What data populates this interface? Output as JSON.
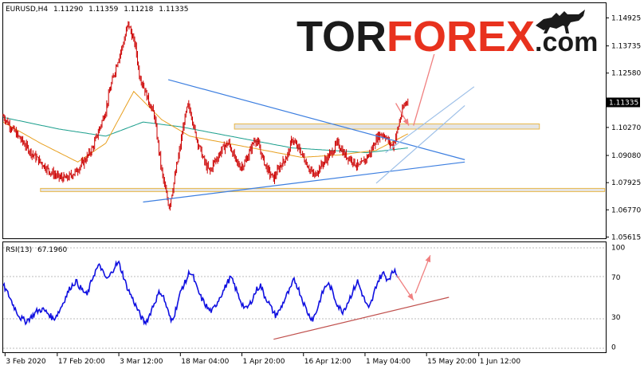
{
  "chart_data": [
    {
      "type": "line",
      "header": {
        "symbol": "EURUSD,H4",
        "open": "1.11290",
        "high": "1.11359",
        "low": "1.11218",
        "close": "1.11335"
      },
      "y_ticks": [
        {
          "value": 1.14925,
          "label": "1.14925"
        },
        {
          "value": 1.13735,
          "label": "1.13735"
        },
        {
          "value": 1.1258,
          "label": "1.12580"
        },
        {
          "value": 1.1027,
          "label": "1.10270"
        },
        {
          "value": 1.0908,
          "label": "1.09080"
        },
        {
          "value": 1.07925,
          "label": "1.07925"
        },
        {
          "value": 1.0677,
          "label": "1.06770"
        },
        {
          "value": 1.05615,
          "label": "1.05615"
        }
      ],
      "current_price": {
        "value": 1.11335,
        "label": "1.11335"
      },
      "ylim": [
        1.0556,
        1.1555
      ],
      "colors": {
        "price": "#cc0000",
        "ma_fast": "#e8a020",
        "ma_slow": "#1a9e8c",
        "trendline": "#3d7fe0",
        "zone_fill": "#dcdcdc",
        "zone_border": "#e8b84a",
        "arrow": "#f08080",
        "channel": "#9ec0e8"
      },
      "price_anchors": [
        [
          0,
          1.1075
        ],
        [
          10,
          1.102
        ],
        [
          20,
          1.097
        ],
        [
          30,
          1.092
        ],
        [
          40,
          1.088
        ],
        [
          50,
          1.084
        ],
        [
          60,
          1.0815
        ],
        [
          68,
          1.081
        ],
        [
          78,
          1.084
        ],
        [
          88,
          1.089
        ],
        [
          96,
          1.094
        ],
        [
          104,
          1.103
        ],
        [
          110,
          1.11
        ],
        [
          114,
          1.118
        ],
        [
          118,
          1.124
        ],
        [
          122,
          1.13
        ],
        [
          126,
          1.135
        ],
        [
          130,
          1.14
        ],
        [
          134,
          1.147
        ],
        [
          138,
          1.142
        ],
        [
          142,
          1.137
        ],
        [
          146,
          1.125
        ],
        [
          150,
          1.121
        ],
        [
          154,
          1.116
        ],
        [
          158,
          1.112
        ],
        [
          162,
          1.108
        ],
        [
          166,
          1.096
        ],
        [
          170,
          1.084
        ],
        [
          174,
          1.076
        ],
        [
          178,
          1.069
        ],
        [
          182,
          1.077
        ],
        [
          186,
          1.086
        ],
        [
          190,
          1.095
        ],
        [
          194,
          1.105
        ],
        [
          198,
          1.112
        ],
        [
          202,
          1.108
        ],
        [
          206,
          1.1
        ],
        [
          210,
          1.095
        ],
        [
          214,
          1.09
        ],
        [
          218,
          1.086
        ],
        [
          222,
          1.084
        ],
        [
          226,
          1.088
        ],
        [
          230,
          1.09
        ],
        [
          234,
          1.093
        ],
        [
          238,
          1.095
        ],
        [
          242,
          1.096
        ],
        [
          246,
          1.092
        ],
        [
          250,
          1.088
        ],
        [
          254,
          1.086
        ],
        [
          258,
          1.087
        ],
        [
          262,
          1.09
        ],
        [
          266,
          1.094
        ],
        [
          270,
          1.098
        ],
        [
          274,
          1.095
        ],
        [
          278,
          1.09
        ],
        [
          282,
          1.086
        ],
        [
          286,
          1.083
        ],
        [
          290,
          1.081
        ],
        [
          294,
          1.084
        ],
        [
          298,
          1.087
        ],
        [
          302,
          1.089
        ],
        [
          306,
          1.092
        ],
        [
          310,
          1.098
        ],
        [
          314,
          1.095
        ],
        [
          318,
          1.093
        ],
        [
          322,
          1.09
        ],
        [
          326,
          1.087
        ],
        [
          330,
          1.084
        ],
        [
          334,
          1.082
        ],
        [
          338,
          1.085
        ],
        [
          342,
          1.087
        ],
        [
          346,
          1.089
        ],
        [
          350,
          1.091
        ],
        [
          354,
          1.093
        ],
        [
          358,
          1.096
        ],
        [
          362,
          1.094
        ],
        [
          366,
          1.091
        ],
        [
          370,
          1.09
        ],
        [
          374,
          1.089
        ],
        [
          378,
          1.087
        ],
        [
          382,
          1.086
        ],
        [
          386,
          1.088
        ],
        [
          390,
          1.09
        ],
        [
          394,
          1.092
        ],
        [
          398,
          1.096
        ],
        [
          402,
          1.099
        ],
        [
          406,
          1.1
        ],
        [
          410,
          1.099
        ],
        [
          414,
          1.096
        ],
        [
          418,
          1.095
        ],
        [
          422,
          1.1
        ],
        [
          426,
          1.107
        ],
        [
          430,
          1.112
        ],
        [
          434,
          1.115
        ]
      ],
      "ma_fast": [
        [
          0,
          1.105
        ],
        [
          40,
          1.096
        ],
        [
          80,
          1.088
        ],
        [
          110,
          1.096
        ],
        [
          140,
          1.118
        ],
        [
          170,
          1.106
        ],
        [
          200,
          1.099
        ],
        [
          240,
          1.096
        ],
        [
          280,
          1.093
        ],
        [
          320,
          1.09
        ],
        [
          360,
          1.091
        ],
        [
          400,
          1.093
        ],
        [
          434,
          1.1
        ]
      ],
      "ma_slow": [
        [
          0,
          1.107
        ],
        [
          60,
          1.102
        ],
        [
          110,
          1.099
        ],
        [
          150,
          1.105
        ],
        [
          190,
          1.103
        ],
        [
          230,
          1.1
        ],
        [
          270,
          1.097
        ],
        [
          310,
          1.094
        ],
        [
          350,
          1.093
        ],
        [
          390,
          1.092
        ],
        [
          434,
          1.094
        ]
      ],
      "lines": [
        {
          "name": "upper-trendline",
          "from": [
            177,
            1.123
          ],
          "to": [
            495,
            1.089
          ]
        },
        {
          "name": "lower-trendline",
          "from": [
            150,
            1.071
          ],
          "to": [
            495,
            1.088
          ]
        },
        {
          "name": "channel-lower",
          "from": [
            400,
            1.079
          ],
          "to": [
            495,
            1.112
          ]
        },
        {
          "name": "channel-upper",
          "from": [
            410,
            1.092
          ],
          "to": [
            505,
            1.12
          ]
        }
      ],
      "zones": [
        {
          "name": "resistance-zone",
          "x_from": 248,
          "x_to": 575,
          "y_from": 1.102,
          "y_to": 1.1042
        },
        {
          "name": "support-zone",
          "x_from": 40,
          "x_to": 645,
          "y_from": 1.0755,
          "y_to": 1.0768
        }
      ],
      "forecast_arrows": [
        {
          "name": "forecast-down-arrow",
          "from": [
            421,
            1.113
          ],
          "to": [
            435,
            1.1035
          ]
        },
        {
          "name": "forecast-up-arrow",
          "from": [
            440,
            1.1035
          ],
          "to": [
            466,
            1.139
          ]
        }
      ]
    },
    {
      "type": "line",
      "header": {
        "label": "RSI(13)",
        "value": "67.1960"
      },
      "y_ticks": [
        {
          "value": 100,
          "label": "100"
        },
        {
          "value": 70,
          "label": "70"
        },
        {
          "value": 30,
          "label": "30"
        },
        {
          "value": 0,
          "label": "0"
        }
      ],
      "ylim": [
        -5,
        105
      ],
      "colors": {
        "rsi": "#1010e0",
        "trendline": "#c0504d",
        "arrow": "#f08080"
      },
      "rsi_anchors": [
        [
          0,
          62
        ],
        [
          6,
          52
        ],
        [
          12,
          40
        ],
        [
          18,
          30
        ],
        [
          24,
          26
        ],
        [
          30,
          30
        ],
        [
          36,
          36
        ],
        [
          42,
          38
        ],
        [
          48,
          34
        ],
        [
          54,
          28
        ],
        [
          60,
          36
        ],
        [
          66,
          48
        ],
        [
          72,
          60
        ],
        [
          78,
          66
        ],
        [
          84,
          58
        ],
        [
          90,
          52
        ],
        [
          96,
          70
        ],
        [
          100,
          78
        ],
        [
          104,
          82
        ],
        [
          108,
          72
        ],
        [
          112,
          68
        ],
        [
          116,
          74
        ],
        [
          120,
          82
        ],
        [
          124,
          84
        ],
        [
          128,
          74
        ],
        [
          132,
          62
        ],
        [
          136,
          54
        ],
        [
          140,
          46
        ],
        [
          144,
          38
        ],
        [
          148,
          30
        ],
        [
          152,
          24
        ],
        [
          156,
          30
        ],
        [
          160,
          40
        ],
        [
          164,
          48
        ],
        [
          168,
          56
        ],
        [
          172,
          50
        ],
        [
          176,
          38
        ],
        [
          180,
          26
        ],
        [
          184,
          34
        ],
        [
          188,
          48
        ],
        [
          192,
          60
        ],
        [
          196,
          66
        ],
        [
          200,
          76
        ],
        [
          204,
          70
        ],
        [
          208,
          58
        ],
        [
          212,
          50
        ],
        [
          216,
          44
        ],
        [
          220,
          38
        ],
        [
          224,
          36
        ],
        [
          228,
          42
        ],
        [
          232,
          50
        ],
        [
          236,
          56
        ],
        [
          240,
          64
        ],
        [
          244,
          70
        ],
        [
          248,
          62
        ],
        [
          252,
          52
        ],
        [
          256,
          44
        ],
        [
          260,
          38
        ],
        [
          264,
          42
        ],
        [
          268,
          50
        ],
        [
          272,
          58
        ],
        [
          276,
          62
        ],
        [
          280,
          52
        ],
        [
          284,
          46
        ],
        [
          288,
          38
        ],
        [
          292,
          32
        ],
        [
          296,
          36
        ],
        [
          300,
          44
        ],
        [
          304,
          52
        ],
        [
          308,
          58
        ],
        [
          312,
          68
        ],
        [
          316,
          60
        ],
        [
          320,
          50
        ],
        [
          324,
          40
        ],
        [
          328,
          32
        ],
        [
          332,
          28
        ],
        [
          336,
          36
        ],
        [
          340,
          48
        ],
        [
          344,
          58
        ],
        [
          348,
          64
        ],
        [
          352,
          58
        ],
        [
          356,
          48
        ],
        [
          360,
          40
        ],
        [
          364,
          36
        ],
        [
          368,
          42
        ],
        [
          372,
          50
        ],
        [
          376,
          58
        ],
        [
          380,
          66
        ],
        [
          384,
          56
        ],
        [
          388,
          46
        ],
        [
          392,
          38
        ],
        [
          396,
          48
        ],
        [
          400,
          62
        ],
        [
          404,
          70
        ],
        [
          408,
          74
        ],
        [
          412,
          68
        ],
        [
          416,
          72
        ],
        [
          420,
          78
        ],
        [
          424,
          70
        ]
      ],
      "lines": [
        {
          "name": "rsi-support-trendline",
          "from": [
            290,
            8
          ],
          "to": [
            478,
            50
          ]
        }
      ],
      "forecast_arrows": [
        {
          "name": "rsi-forecast-down-arrow",
          "from": [
            422,
            72
          ],
          "to": [
            440,
            47
          ]
        },
        {
          "name": "rsi-forecast-up-arrow",
          "from": [
            442,
            54
          ],
          "to": [
            458,
            92
          ]
        }
      ]
    }
  ],
  "x_ticks": [
    {
      "x": 2,
      "label": "3 Feb 2020"
    },
    {
      "x": 58,
      "label": "17 Feb 20:00"
    },
    {
      "x": 124,
      "label": "3 Mar 12:00"
    },
    {
      "x": 190,
      "label": "18 Mar 04:00"
    },
    {
      "x": 256,
      "label": "1 Apr 20:00"
    },
    {
      "x": 322,
      "label": "16 Apr 12:00"
    },
    {
      "x": 388,
      "label": "1 May 04:00"
    },
    {
      "x": 454,
      "label": "15 May 20:00"
    },
    {
      "x": 510,
      "label": "1 Jun 12:00"
    }
  ],
  "logo": {
    "part1": "TOR",
    "part2": "FOREX",
    "part3": ".com",
    "icon": "bull-icon"
  }
}
